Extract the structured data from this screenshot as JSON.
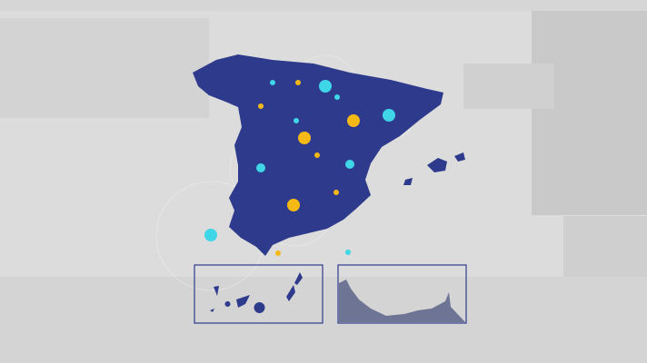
{
  "colors": {
    "background": "#dcdcdc",
    "land": "#2e3b8c",
    "cyan": "#3fd6e8",
    "yellow": "#f5b915",
    "inset_border": "#2e3b8c",
    "ceuta_fill": "#6e7494"
  },
  "map": {
    "markers": [
      {
        "color": "cyan",
        "size": "large"
      },
      {
        "color": "cyan",
        "size": "small"
      },
      {
        "color": "yellow",
        "size": "small"
      },
      {
        "color": "yellow",
        "size": "small"
      },
      {
        "color": "cyan",
        "size": "small"
      },
      {
        "color": "yellow",
        "size": "large"
      },
      {
        "color": "cyan",
        "size": "large"
      },
      {
        "color": "cyan",
        "size": "small"
      },
      {
        "color": "yellow",
        "size": "large"
      },
      {
        "color": "yellow",
        "size": "small"
      },
      {
        "color": "cyan",
        "size": "medium"
      },
      {
        "color": "cyan",
        "size": "medium"
      },
      {
        "color": "yellow",
        "size": "small"
      },
      {
        "color": "yellow",
        "size": "large"
      },
      {
        "color": "cyan",
        "size": "large"
      },
      {
        "color": "yellow",
        "size": "small"
      },
      {
        "color": "cyan",
        "size": "small"
      }
    ],
    "insets": [
      "canary-islands",
      "ceuta-melilla"
    ]
  }
}
